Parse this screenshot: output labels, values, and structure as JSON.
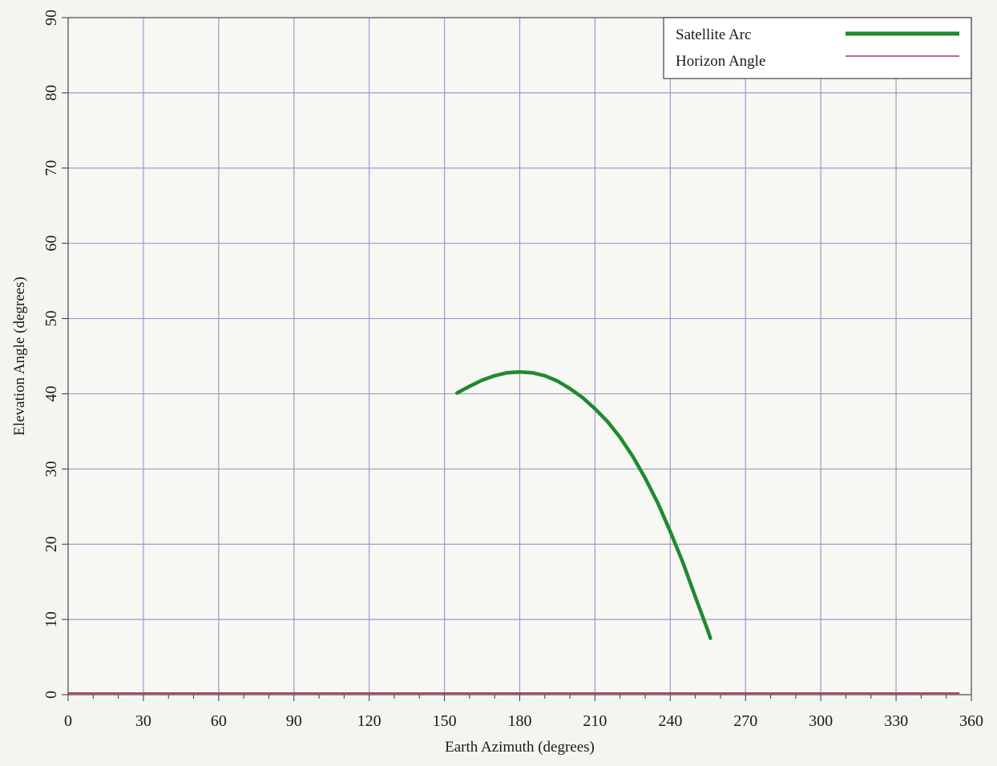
{
  "chart_data": {
    "type": "line",
    "title": "",
    "xlabel": "Earth Azimuth (degrees)",
    "ylabel": "Elevation Angle (degrees)",
    "xlim": [
      0,
      360
    ],
    "ylim": [
      0,
      90
    ],
    "x_ticks": [
      0,
      30,
      60,
      90,
      120,
      150,
      180,
      210,
      240,
      270,
      300,
      330,
      360
    ],
    "y_ticks": [
      0,
      10,
      20,
      30,
      40,
      50,
      60,
      70,
      80,
      90
    ],
    "grid": true,
    "legend_position": "top-right",
    "colors": {
      "satellite_arc": "#1f8a2e",
      "horizon_angle": "#b0305a",
      "grid": "#9a9acb",
      "axis": "#333333"
    },
    "series": [
      {
        "name": "Satellite Arc",
        "x": [
          155,
          160,
          165,
          170,
          175,
          180,
          185,
          190,
          195,
          200,
          205,
          210,
          215,
          220,
          225,
          230,
          235,
          240,
          245,
          250,
          255,
          256
        ],
        "y": [
          40.1,
          41.0,
          41.8,
          42.4,
          42.8,
          42.9,
          42.8,
          42.4,
          41.7,
          40.7,
          39.5,
          38.0,
          36.3,
          34.2,
          31.7,
          28.8,
          25.5,
          21.7,
          17.6,
          13.0,
          8.5,
          7.5
        ]
      },
      {
        "name": "Horizon Angle",
        "x": [
          0,
          30,
          60,
          90,
          120,
          150,
          180,
          210,
          240,
          270,
          300,
          330,
          355
        ],
        "y": [
          0.2,
          0.2,
          0.2,
          0.2,
          0.2,
          0.2,
          0.2,
          0.2,
          0.2,
          0.2,
          0.2,
          0.2,
          0.2
        ]
      }
    ]
  }
}
